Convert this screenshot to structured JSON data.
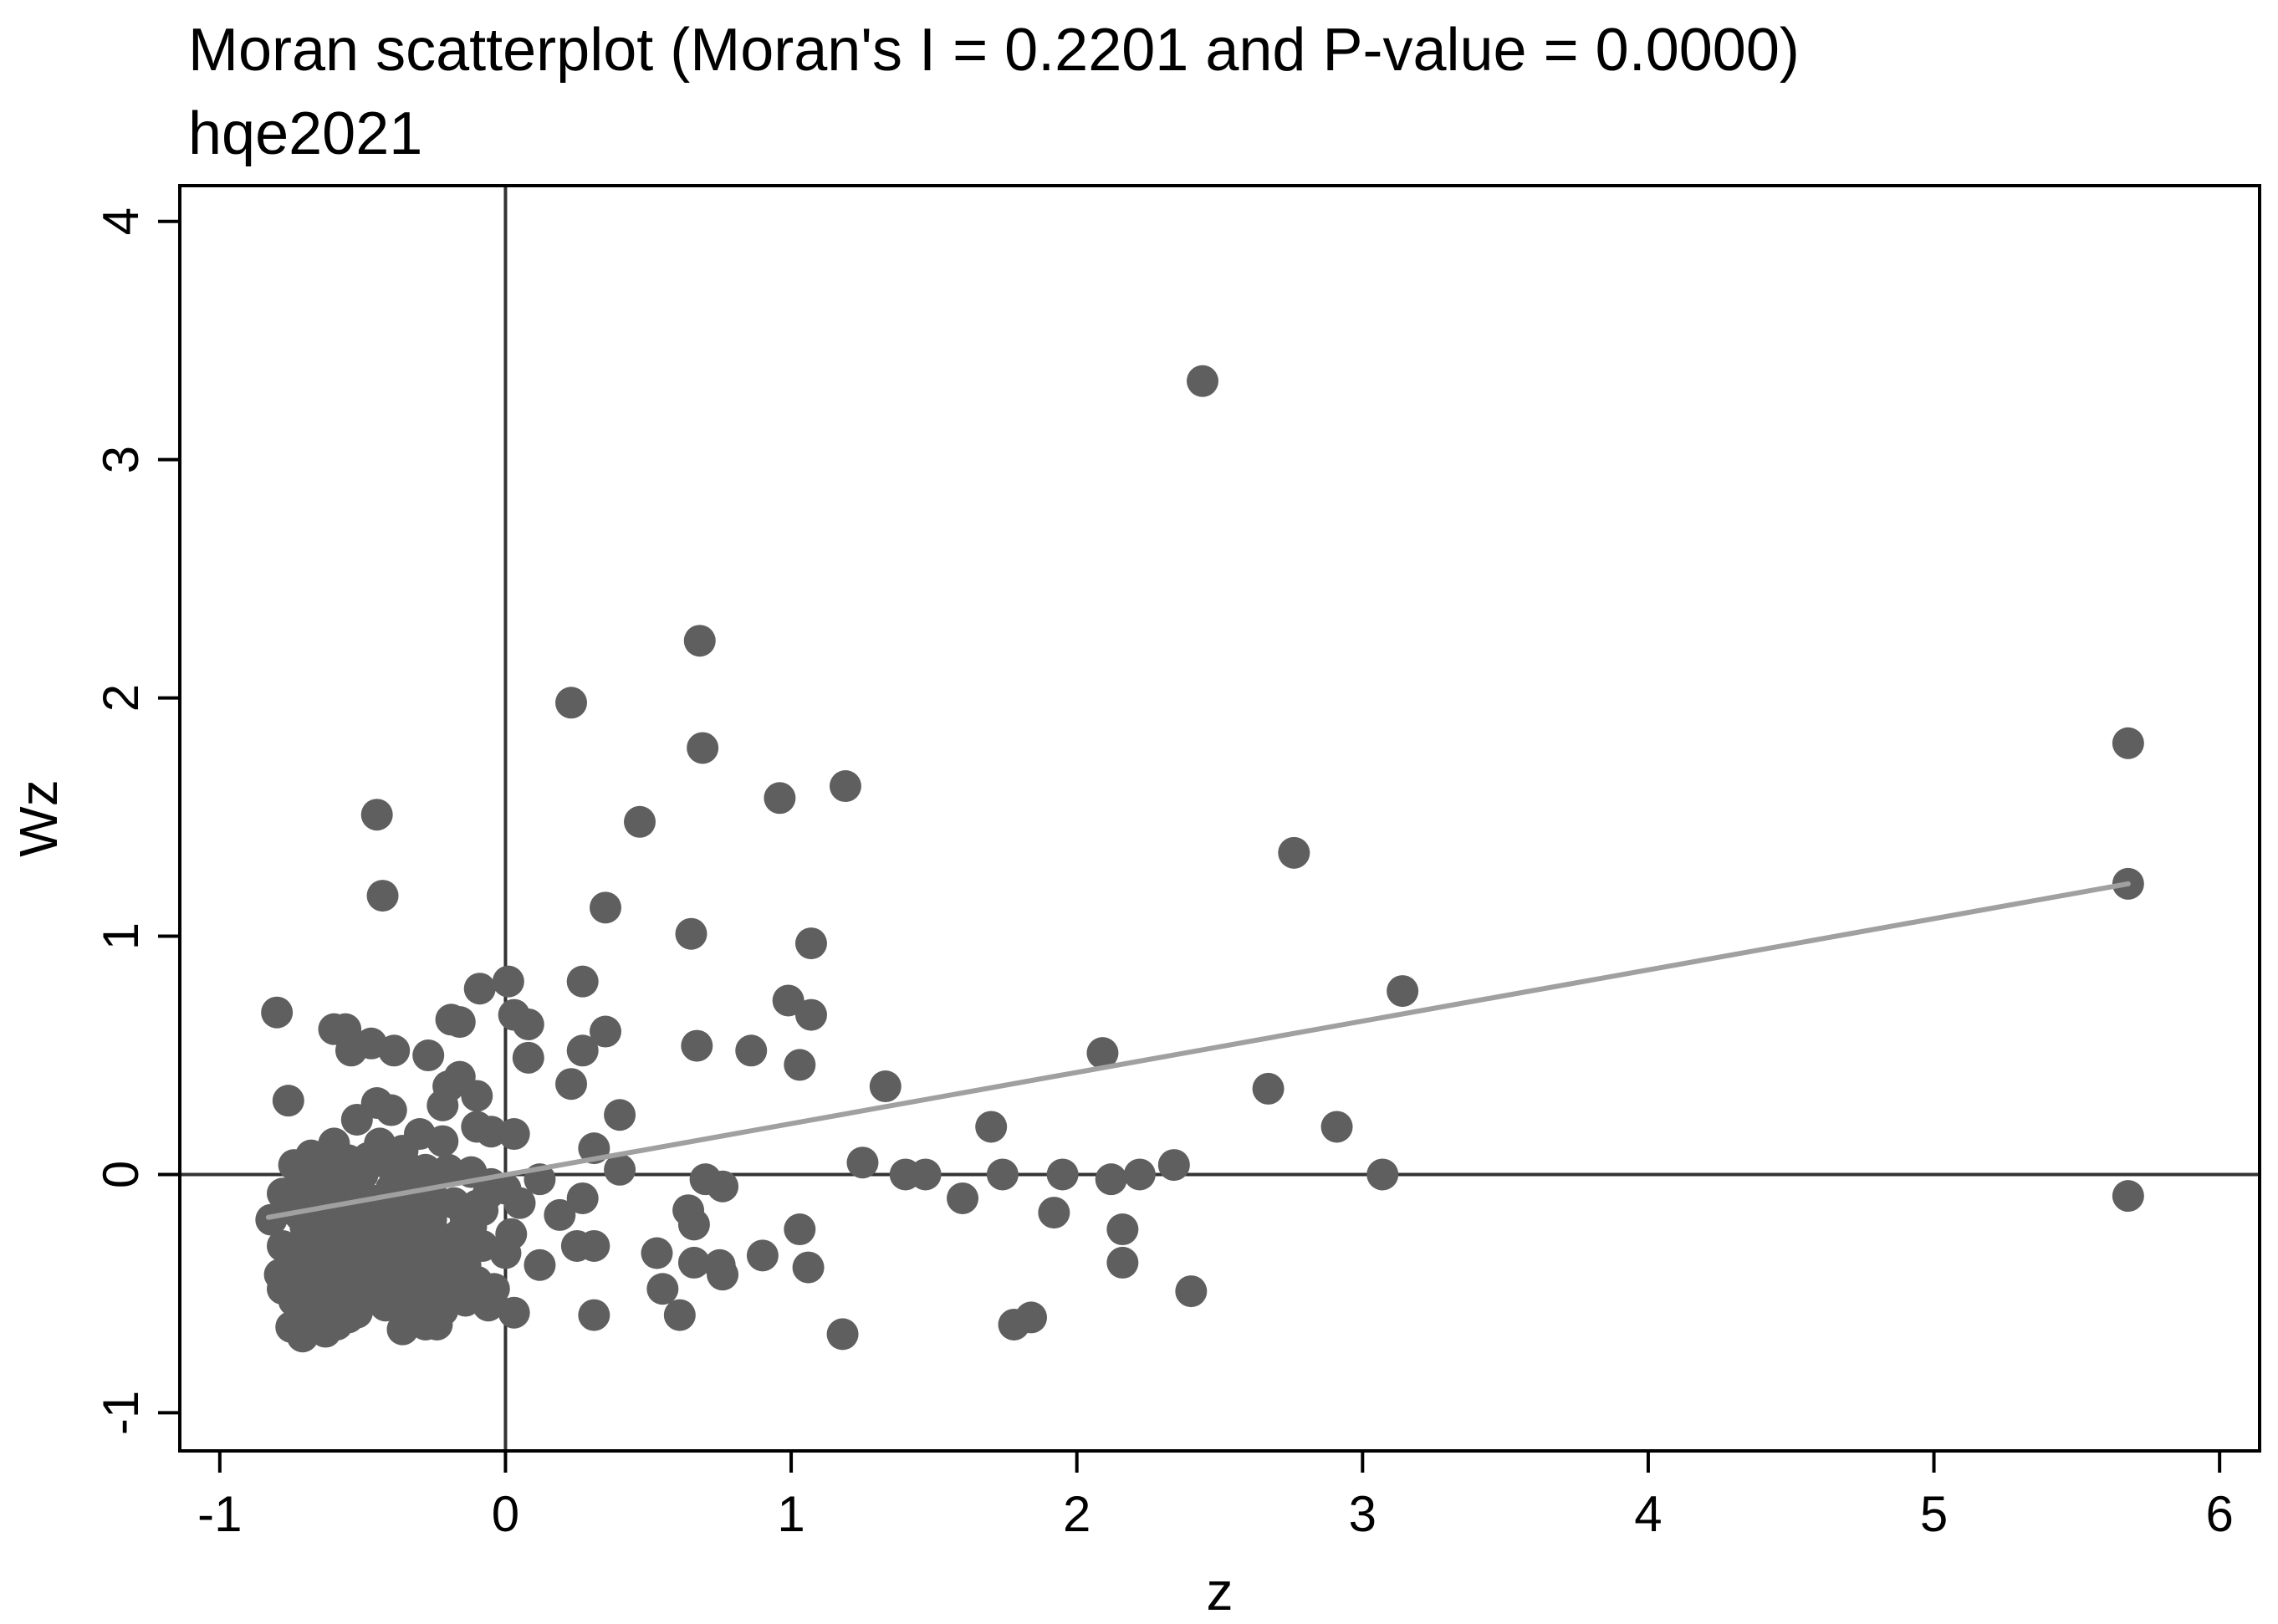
{
  "chart_data": {
    "type": "scatter",
    "title": "Moran scatterplot (Moran's I = 0.2201 and P-value = 0.0000)",
    "subtitle": "hqe2021",
    "xlabel": "z",
    "ylabel": "Wz",
    "xlim": [
      -1.14,
      6.14
    ],
    "ylim": [
      -1.16,
      4.15
    ],
    "xticks": [
      -1,
      0,
      1,
      2,
      3,
      4,
      5,
      6
    ],
    "yticks": [
      -1,
      0,
      1,
      2,
      3,
      4
    ],
    "reference_lines": {
      "x": 0,
      "y": 0
    },
    "fit_line": {
      "x": [
        -0.83,
        5.68
      ],
      "y": [
        -0.18,
        1.22
      ],
      "color": "#a0a0a0"
    },
    "point_color": "#5f5f5f",
    "frame_color": "#000000",
    "points": [
      [
        2.44,
        3.33
      ],
      [
        0.68,
        2.24
      ],
      [
        0.23,
        1.98
      ],
      [
        0.69,
        1.79
      ],
      [
        1.19,
        1.63
      ],
      [
        0.96,
        1.58
      ],
      [
        0.47,
        1.48
      ],
      [
        2.76,
        1.35
      ],
      [
        5.68,
        1.81
      ],
      [
        5.68,
        1.22
      ],
      [
        5.68,
        -0.09
      ],
      [
        -0.45,
        1.51
      ],
      [
        -0.43,
        1.17
      ],
      [
        0.35,
        1.12
      ],
      [
        0.65,
        1.01
      ],
      [
        1.07,
        0.97
      ],
      [
        0.99,
        0.73
      ],
      [
        1.07,
        0.67
      ],
      [
        0.27,
        0.81
      ],
      [
        0.01,
        0.81
      ],
      [
        -0.09,
        0.78
      ],
      [
        0.03,
        0.67
      ],
      [
        0.08,
        0.63
      ],
      [
        3.14,
        0.77
      ],
      [
        2.67,
        0.36
      ],
      [
        2.91,
        0.2
      ],
      [
        3.07,
        0.0
      ],
      [
        2.09,
        0.51
      ],
      [
        0.86,
        0.52
      ],
      [
        0.67,
        0.54
      ],
      [
        1.03,
        0.46
      ],
      [
        1.33,
        0.37
      ],
      [
        0.35,
        0.6
      ],
      [
        0.27,
        0.52
      ],
      [
        0.23,
        0.38
      ],
      [
        0.08,
        0.49
      ],
      [
        0.4,
        0.25
      ],
      [
        0.31,
        0.11
      ],
      [
        0.4,
        0.02
      ],
      [
        0.12,
        -0.02
      ],
      [
        1.25,
        0.05
      ],
      [
        1.4,
        0.0
      ],
      [
        1.47,
        0.0
      ],
      [
        1.7,
        0.2
      ],
      [
        1.74,
        0.0
      ],
      [
        1.95,
        0.0
      ],
      [
        2.12,
        -0.02
      ],
      [
        2.22,
        0.0
      ],
      [
        2.34,
        0.04
      ],
      [
        0.7,
        -0.02
      ],
      [
        0.76,
        -0.05
      ],
      [
        1.6,
        -0.1
      ],
      [
        1.92,
        -0.16
      ],
      [
        2.16,
        -0.23
      ],
      [
        2.16,
        -0.37
      ],
      [
        2.4,
        -0.49
      ],
      [
        0.64,
        -0.15
      ],
      [
        0.66,
        -0.21
      ],
      [
        1.03,
        -0.23
      ],
      [
        0.9,
        -0.34
      ],
      [
        1.06,
        -0.39
      ],
      [
        0.66,
        -0.37
      ],
      [
        0.75,
        -0.38
      ],
      [
        0.76,
        -0.42
      ],
      [
        0.53,
        -0.33
      ],
      [
        0.55,
        -0.48
      ],
      [
        0.61,
        -0.59
      ],
      [
        0.31,
        -0.3
      ],
      [
        0.25,
        -0.3
      ],
      [
        0.12,
        -0.38
      ],
      [
        0.31,
        -0.59
      ],
      [
        1.18,
        -0.67
      ],
      [
        1.78,
        -0.63
      ],
      [
        1.84,
        -0.6
      ],
      [
        0.19,
        -0.17
      ],
      [
        0.27,
        -0.1
      ],
      [
        0.0,
        -0.33
      ],
      [
        0.03,
        -0.58
      ],
      [
        -0.8,
        0.68
      ],
      [
        -0.76,
        0.31
      ],
      [
        -0.6,
        0.61
      ],
      [
        -0.56,
        0.61
      ],
      [
        -0.54,
        0.52
      ],
      [
        -0.47,
        0.55
      ],
      [
        -0.39,
        0.52
      ],
      [
        -0.27,
        0.5
      ],
      [
        -0.19,
        0.65
      ],
      [
        -0.16,
        0.64
      ],
      [
        -0.16,
        0.41
      ],
      [
        -0.2,
        0.37
      ],
      [
        -0.1,
        0.33
      ],
      [
        -0.1,
        0.2
      ],
      [
        -0.05,
        0.18
      ],
      [
        0.03,
        0.17
      ],
      [
        -0.22,
        0.29
      ],
      [
        -0.4,
        0.27
      ],
      [
        -0.45,
        0.3
      ],
      [
        -0.52,
        0.23
      ],
      [
        -0.3,
        0.17
      ],
      [
        -0.22,
        0.14
      ],
      [
        -0.6,
        0.13
      ],
      [
        -0.68,
        0.08
      ],
      [
        -0.74,
        0.04
      ],
      [
        -0.62,
        0.03
      ],
      [
        -0.55,
        0.06
      ],
      [
        -0.48,
        0.07
      ],
      [
        -0.42,
        0.05
      ],
      [
        -0.35,
        0.04
      ],
      [
        -0.28,
        0.02
      ],
      [
        -0.2,
        0.02
      ],
      [
        -0.12,
        0.01
      ],
      [
        -0.05,
        -0.04
      ],
      [
        0.0,
        -0.06
      ],
      [
        -0.82,
        -0.19
      ],
      [
        -0.78,
        -0.08
      ],
      [
        -0.74,
        -0.15
      ],
      [
        -0.7,
        -0.22
      ],
      [
        -0.66,
        -0.1
      ],
      [
        -0.62,
        -0.2
      ],
      [
        -0.58,
        -0.13
      ],
      [
        -0.54,
        -0.05
      ],
      [
        -0.5,
        -0.17
      ],
      [
        -0.46,
        -0.11
      ],
      [
        -0.42,
        -0.24
      ],
      [
        -0.38,
        -0.15
      ],
      [
        -0.34,
        -0.21
      ],
      [
        -0.3,
        -0.09
      ],
      [
        -0.26,
        -0.19
      ],
      [
        -0.22,
        -0.27
      ],
      [
        -0.18,
        -0.12
      ],
      [
        -0.14,
        -0.18
      ],
      [
        -0.1,
        -0.13
      ],
      [
        -0.06,
        -0.08
      ],
      [
        -0.78,
        -0.3
      ],
      [
        -0.74,
        -0.36
      ],
      [
        -0.7,
        -0.27
      ],
      [
        -0.66,
        -0.33
      ],
      [
        -0.62,
        -0.4
      ],
      [
        -0.58,
        -0.3
      ],
      [
        -0.54,
        -0.36
      ],
      [
        -0.5,
        -0.28
      ],
      [
        -0.46,
        -0.34
      ],
      [
        -0.42,
        -0.41
      ],
      [
        -0.38,
        -0.3
      ],
      [
        -0.34,
        -0.37
      ],
      [
        -0.3,
        -0.28
      ],
      [
        -0.26,
        -0.35
      ],
      [
        -0.22,
        -0.4
      ],
      [
        -0.18,
        -0.32
      ],
      [
        -0.14,
        -0.38
      ],
      [
        -0.1,
        -0.45
      ],
      [
        -0.78,
        -0.48
      ],
      [
        -0.74,
        -0.53
      ],
      [
        -0.7,
        -0.45
      ],
      [
        -0.66,
        -0.51
      ],
      [
        -0.62,
        -0.56
      ],
      [
        -0.58,
        -0.47
      ],
      [
        -0.54,
        -0.52
      ],
      [
        -0.5,
        -0.44
      ],
      [
        -0.46,
        -0.5
      ],
      [
        -0.42,
        -0.55
      ],
      [
        -0.38,
        -0.47
      ],
      [
        -0.34,
        -0.53
      ],
      [
        -0.3,
        -0.45
      ],
      [
        -0.26,
        -0.52
      ],
      [
        -0.22,
        -0.57
      ],
      [
        -0.18,
        -0.5
      ],
      [
        -0.14,
        -0.53
      ],
      [
        -0.06,
        -0.55
      ],
      [
        -0.75,
        -0.64
      ],
      [
        -0.71,
        -0.68
      ],
      [
        -0.67,
        -0.6
      ],
      [
        -0.63,
        -0.66
      ],
      [
        -0.59,
        -0.63
      ],
      [
        -0.55,
        -0.6
      ],
      [
        -0.36,
        -0.65
      ],
      [
        -0.28,
        -0.63
      ],
      [
        -0.24,
        -0.63
      ],
      [
        -0.79,
        -0.42
      ],
      [
        -0.72,
        -0.17
      ],
      [
        -0.64,
        -0.05
      ],
      [
        -0.56,
        -0.24
      ],
      [
        -0.48,
        -0.29
      ],
      [
        -0.4,
        -0.06
      ],
      [
        -0.32,
        -0.25
      ],
      [
        -0.24,
        -0.46
      ],
      [
        -0.16,
        -0.25
      ],
      [
        -0.08,
        -0.3
      ],
      [
        -0.68,
        -0.38
      ],
      [
        -0.6,
        -0.45
      ],
      [
        -0.52,
        -0.58
      ],
      [
        -0.44,
        -0.2
      ],
      [
        -0.36,
        -0.42
      ],
      [
        -0.28,
        -0.57
      ],
      [
        -0.2,
        -0.37
      ],
      [
        -0.12,
        -0.22
      ],
      [
        -0.72,
        -0.58
      ],
      [
        -0.64,
        -0.28
      ],
      [
        -0.56,
        -0.09
      ],
      [
        -0.48,
        -0.4
      ],
      [
        -0.4,
        -0.18
      ],
      [
        -0.32,
        -0.5
      ],
      [
        -0.24,
        -0.12
      ],
      [
        -0.16,
        -0.42
      ],
      [
        -0.08,
        -0.15
      ],
      [
        0.05,
        -0.12
      ],
      [
        -0.04,
        -0.48
      ],
      [
        0.02,
        -0.25
      ],
      [
        -0.5,
        0.0
      ],
      [
        -0.44,
        0.13
      ],
      [
        -0.36,
        0.1
      ],
      [
        -0.58,
        -0.02
      ],
      [
        -0.66,
        0.0
      ],
      [
        -0.7,
        -0.04
      ],
      [
        -0.34,
        0.0
      ],
      [
        -0.26,
        -0.04
      ]
    ]
  }
}
